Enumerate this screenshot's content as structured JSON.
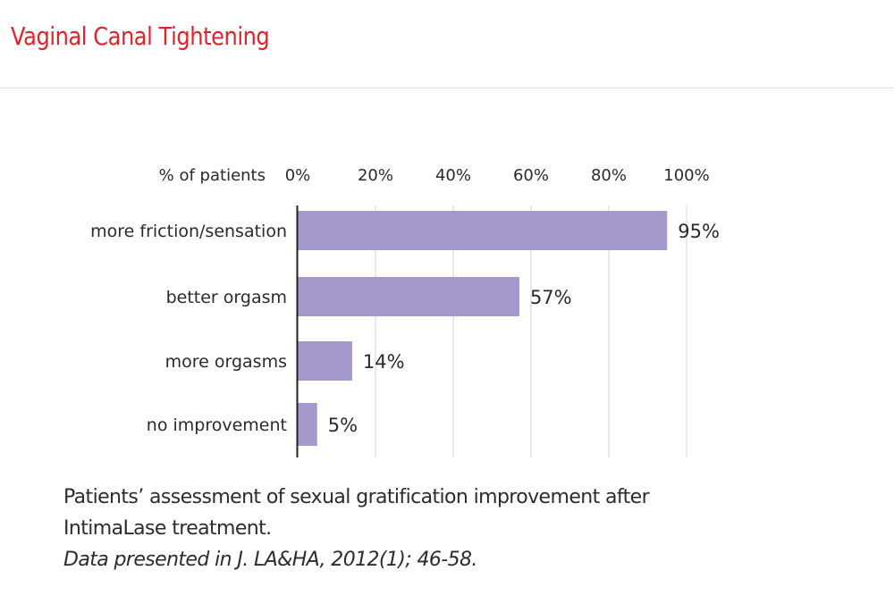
{
  "page": {
    "title": "Vaginal Canal Tightening",
    "title_color": "#e0222a"
  },
  "chart_data": {
    "type": "bar",
    "orientation": "horizontal",
    "axis_title": "% of patients",
    "categories": [
      "more friction/sensation",
      "better orgasm",
      "more orgasms",
      "no improvement"
    ],
    "values": [
      95,
      57,
      14,
      5
    ],
    "value_labels": [
      "95%",
      "57%",
      "14%",
      "5%"
    ],
    "x_ticks": [
      0,
      20,
      40,
      60,
      80,
      100
    ],
    "x_tick_labels": [
      "0%",
      "20%",
      "40%",
      "60%",
      "80%",
      "100%"
    ],
    "xlim": [
      0,
      100
    ],
    "grid": true,
    "bar_color": "#a598cd",
    "caption_lines": [
      "Patients’ assessment of sexual gratification improvement after",
      "IntimaLase treatment."
    ],
    "source": "Data presented in J. LA&HA, 2012(1); 46-58."
  }
}
